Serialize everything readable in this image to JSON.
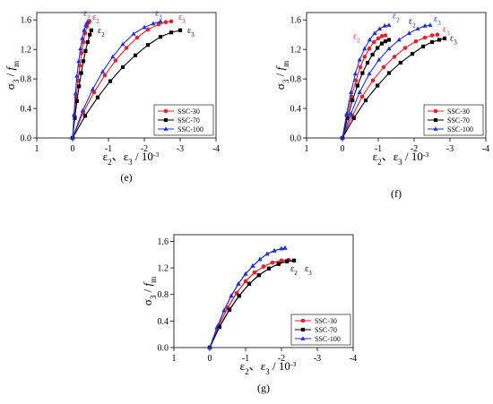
{
  "chart_data": [
    {
      "type": "line",
      "panel_label": "(e)",
      "xlim": [
        1,
        -4
      ],
      "ylim": [
        0,
        1.7
      ],
      "xticks": [
        1,
        0,
        -1,
        -2,
        -3,
        -4
      ],
      "xtick_labels": [
        "1",
        "0",
        "-1",
        "-2",
        "-3",
        "-4"
      ],
      "yticks": [
        0,
        0.4,
        0.8,
        1.2,
        1.6
      ],
      "ytick_labels": [
        "0.0",
        "0.4",
        "0.8",
        "1.2",
        "1.6"
      ],
      "legend_position": "lower-right",
      "series": [
        {
          "name": "SSC-30",
          "color": "#e8202a",
          "marker": "circle",
          "eps2": {
            "x": [
              0,
              -0.05,
              -0.1,
              -0.15,
              -0.2,
              -0.25,
              -0.3,
              -0.35,
              -0.4,
              -0.44,
              -0.47
            ],
            "y": [
              0,
              0.3,
              0.55,
              0.78,
              0.98,
              1.15,
              1.3,
              1.42,
              1.51,
              1.56,
              1.58
            ]
          },
          "eps3": {
            "x": [
              0,
              -0.3,
              -0.6,
              -0.9,
              -1.2,
              -1.5,
              -1.8,
              -2.1,
              -2.4,
              -2.6,
              -2.75
            ],
            "y": [
              0,
              0.35,
              0.62,
              0.85,
              1.05,
              1.22,
              1.36,
              1.47,
              1.54,
              1.57,
              1.58
            ]
          }
        },
        {
          "name": "SSC-70",
          "color": "#000000",
          "marker": "square",
          "eps2": {
            "x": [
              0,
              -0.06,
              -0.12,
              -0.18,
              -0.24,
              -0.3,
              -0.36,
              -0.42,
              -0.48,
              -0.52
            ],
            "y": [
              0,
              0.27,
              0.5,
              0.7,
              0.88,
              1.04,
              1.18,
              1.3,
              1.4,
              1.46
            ]
          },
          "eps3": {
            "x": [
              0,
              -0.35,
              -0.7,
              -1.05,
              -1.4,
              -1.75,
              -2.1,
              -2.45,
              -2.75,
              -3.0
            ],
            "y": [
              0,
              0.3,
              0.55,
              0.77,
              0.96,
              1.12,
              1.26,
              1.37,
              1.43,
              1.46
            ]
          }
        },
        {
          "name": "SSC-100",
          "color": "#2030d8",
          "marker": "triangle",
          "eps2": {
            "x": [
              0,
              -0.04,
              -0.08,
              -0.12,
              -0.17,
              -0.22,
              -0.27,
              -0.32,
              -0.37,
              -0.41
            ],
            "y": [
              0,
              0.32,
              0.6,
              0.84,
              1.04,
              1.21,
              1.35,
              1.46,
              1.53,
              1.57
            ]
          },
          "eps3": {
            "x": [
              0,
              -0.28,
              -0.56,
              -0.84,
              -1.12,
              -1.4,
              -1.7,
              -2.0,
              -2.25,
              -2.45
            ],
            "y": [
              0,
              0.37,
              0.66,
              0.9,
              1.1,
              1.27,
              1.41,
              1.5,
              1.55,
              1.58
            ]
          }
        }
      ],
      "annotations": [
        {
          "text": "ε",
          "sub": "2",
          "color": "#2030d8",
          "at": [
            -0.3,
            1.66
          ]
        },
        {
          "text": "ε",
          "sub": "2",
          "color": "#e8202a",
          "at": [
            -0.55,
            1.6
          ]
        },
        {
          "text": "ε",
          "sub": "2",
          "color": "#000000",
          "at": [
            -0.7,
            1.42
          ]
        },
        {
          "text": "ε",
          "sub": "3",
          "color": "#2030d8",
          "at": [
            -2.3,
            1.66
          ]
        },
        {
          "text": "ε",
          "sub": "3",
          "color": "#e8202a",
          "at": [
            -2.95,
            1.6
          ]
        },
        {
          "text": "ε",
          "sub": "3",
          "color": "#000000",
          "at": [
            -3.2,
            1.42
          ]
        }
      ]
    },
    {
      "type": "line",
      "panel_label": "(f)",
      "xlim": [
        1,
        -4
      ],
      "ylim": [
        0,
        1.7
      ],
      "xticks": [
        1,
        0,
        -1,
        -2,
        -3,
        -4
      ],
      "xtick_labels": [
        "1",
        "0",
        "-1",
        "-2",
        "-3",
        "-4"
      ],
      "yticks": [
        0,
        0.4,
        0.8,
        1.2,
        1.6
      ],
      "ytick_labels": [
        "0.0",
        "0.4",
        "0.8",
        "1.2",
        "1.6"
      ],
      "legend_position": "lower-right",
      "series": [
        {
          "name": "SSC-30",
          "color": "#e8202a",
          "marker": "circle",
          "eps2": {
            "x": [
              0,
              -0.12,
              -0.25,
              -0.38,
              -0.5,
              -0.62,
              -0.75,
              -0.88,
              -1.0,
              -1.1,
              -1.2
            ],
            "y": [
              0,
              0.3,
              0.56,
              0.78,
              0.96,
              1.1,
              1.21,
              1.3,
              1.35,
              1.38,
              1.39
            ]
          },
          "eps3": {
            "x": [
              0,
              -0.28,
              -0.55,
              -0.85,
              -1.15,
              -1.45,
              -1.75,
              -2.05,
              -2.3,
              -2.5,
              -2.65
            ],
            "y": [
              0,
              0.3,
              0.56,
              0.78,
              0.96,
              1.1,
              1.22,
              1.31,
              1.36,
              1.39,
              1.4
            ]
          }
        },
        {
          "name": "SSC-70",
          "color": "#000000",
          "marker": "square",
          "eps2": {
            "x": [
              0,
              -0.14,
              -0.28,
              -0.42,
              -0.56,
              -0.7,
              -0.84,
              -0.98,
              -1.1,
              -1.2,
              -1.3
            ],
            "y": [
              0,
              0.27,
              0.51,
              0.71,
              0.88,
              1.02,
              1.13,
              1.22,
              1.28,
              1.31,
              1.33
            ]
          },
          "eps3": {
            "x": [
              0,
              -0.32,
              -0.65,
              -0.98,
              -1.3,
              -1.62,
              -1.95,
              -2.25,
              -2.5,
              -2.7,
              -2.85
            ],
            "y": [
              0,
              0.27,
              0.51,
              0.71,
              0.88,
              1.02,
              1.14,
              1.24,
              1.3,
              1.33,
              1.35
            ]
          }
        },
        {
          "name": "SSC-100",
          "color": "#2030d8",
          "marker": "triangle",
          "eps2": {
            "x": [
              0,
              -0.12,
              -0.24,
              -0.36,
              -0.48,
              -0.62,
              -0.76,
              -0.9,
              -1.04,
              -1.18,
              -1.3
            ],
            "y": [
              0,
              0.33,
              0.62,
              0.87,
              1.06,
              1.21,
              1.33,
              1.42,
              1.48,
              1.52,
              1.53
            ]
          },
          "eps3": {
            "x": [
              0,
              -0.24,
              -0.48,
              -0.75,
              -1.02,
              -1.3,
              -1.58,
              -1.86,
              -2.1,
              -2.3,
              -2.45
            ],
            "y": [
              0,
              0.33,
              0.62,
              0.87,
              1.06,
              1.21,
              1.33,
              1.42,
              1.48,
              1.52,
              1.53
            ]
          }
        }
      ],
      "annotations": [
        {
          "text": "ε",
          "sub": "2",
          "color": "#2030d8",
          "at": [
            -1.4,
            1.62
          ]
        },
        {
          "text": "ε",
          "sub": "2",
          "color": "#000000",
          "at": [
            -1.85,
            1.55
          ]
        },
        {
          "text": "ε",
          "sub": "2",
          "color": "#e8202a",
          "at": [
            -0.3,
            1.34
          ]
        },
        {
          "text": "ε",
          "sub": "3",
          "color": "#2030d8",
          "at": [
            -2.55,
            1.58
          ]
        },
        {
          "text": "ε",
          "sub": "3",
          "color": "#e8202a",
          "at": [
            -2.8,
            1.44
          ]
        },
        {
          "text": "ε",
          "sub": "3",
          "color": "#000000",
          "at": [
            -3.0,
            1.32
          ]
        }
      ]
    },
    {
      "type": "line",
      "panel_label": "(g)",
      "xlim": [
        1,
        -4
      ],
      "ylim": [
        0,
        1.7
      ],
      "xticks": [
        1,
        0,
        -1,
        -2,
        -3,
        -4
      ],
      "xtick_labels": [
        "1",
        "0",
        "-1",
        "-2",
        "-3",
        "-4"
      ],
      "yticks": [
        0,
        0.4,
        0.8,
        1.2,
        1.6
      ],
      "ytick_labels": [
        "0.0",
        "0.4",
        "0.8",
        "1.2",
        "1.6"
      ],
      "legend_position": "lower-right",
      "series": [
        {
          "name": "SSC-30",
          "color": "#e8202a",
          "marker": "circle",
          "eps2": {
            "x": [
              0,
              -0.25,
              -0.5,
              -0.75,
              -1.0,
              -1.25,
              -1.5,
              -1.75,
              -2.0,
              -2.2
            ],
            "y": [
              0,
              0.33,
              0.6,
              0.82,
              1.0,
              1.13,
              1.22,
              1.28,
              1.31,
              1.32
            ]
          },
          "eps3": {
            "x": [
              0,
              -0.25,
              -0.5,
              -0.75,
              -1.0,
              -1.25,
              -1.5,
              -1.75,
              -2.0,
              -2.2
            ],
            "y": [
              0,
              0.33,
              0.6,
              0.82,
              1.0,
              1.13,
              1.22,
              1.28,
              1.31,
              1.32
            ]
          }
        },
        {
          "name": "SSC-70",
          "color": "#000000",
          "marker": "square",
          "eps2": {
            "x": [
              0,
              -0.27,
              -0.55,
              -0.82,
              -1.1,
              -1.37,
              -1.65,
              -1.92,
              -2.15,
              -2.35
            ],
            "y": [
              0,
              0.31,
              0.57,
              0.78,
              0.96,
              1.09,
              1.19,
              1.26,
              1.3,
              1.31
            ]
          },
          "eps3": {
            "x": [
              0,
              -0.27,
              -0.55,
              -0.82,
              -1.1,
              -1.37,
              -1.65,
              -1.92,
              -2.15,
              -2.35
            ],
            "y": [
              0,
              0.31,
              0.57,
              0.78,
              0.96,
              1.09,
              1.19,
              1.26,
              1.3,
              1.31
            ]
          }
        },
        {
          "name": "SSC-100",
          "color": "#2030d8",
          "marker": "triangle",
          "eps2": {
            "x": [
              0,
              -0.2,
              -0.4,
              -0.6,
              -0.8,
              -1.0,
              -1.2,
              -1.4,
              -1.6,
              -1.8,
              -2.0,
              -2.1
            ],
            "y": [
              0,
              0.3,
              0.56,
              0.78,
              0.96,
              1.11,
              1.23,
              1.33,
              1.41,
              1.46,
              1.49,
              1.5
            ]
          },
          "eps3": {
            "x": [
              0,
              -0.2,
              -0.4,
              -0.6,
              -0.8,
              -1.0,
              -1.2,
              -1.4,
              -1.6,
              -1.8,
              -2.0,
              -2.1
            ],
            "y": [
              0,
              0.3,
              0.56,
              0.78,
              0.96,
              1.11,
              1.23,
              1.33,
              1.41,
              1.46,
              1.49,
              1.5
            ]
          }
        }
      ],
      "annotations": [
        {
          "text": "ε",
          "sub": "2",
          "color": "#000000",
          "at": [
            -2.25,
            1.15
          ]
        },
        {
          "text": "ε",
          "sub": "3",
          "color": "#000000",
          "at": [
            -2.65,
            1.15
          ]
        }
      ]
    }
  ],
  "axes_text": {
    "ylabel_sigma": "σ",
    "ylabel_sigma_sub": "3",
    "ylabel_sep": " / ",
    "ylabel_f": "f",
    "ylabel_f_sub": "m",
    "xlabel_e2": "ε",
    "xlabel_e2_sub": "2",
    "xlabel_sep": "、",
    "xlabel_e3": "ε",
    "xlabel_e3_sub": "3",
    "xlabel_unit": " / 10",
    "xlabel_unit_exp": "-3"
  },
  "colors": {
    "red": "#e8202a",
    "black": "#000000",
    "blue": "#2030d8"
  }
}
